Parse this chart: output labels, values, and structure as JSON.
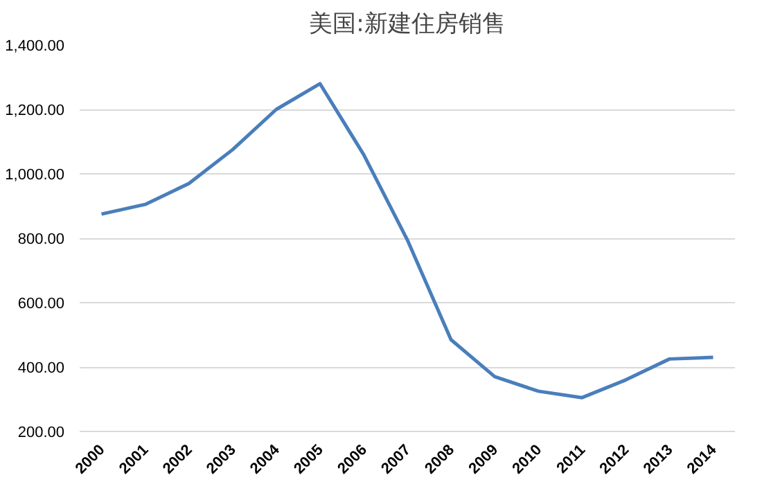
{
  "chart_data": {
    "type": "line",
    "title": "美国:新建住房销售",
    "categories": [
      "2000",
      "2001",
      "2002",
      "2003",
      "2004",
      "2005",
      "2006",
      "2007",
      "2008",
      "2009",
      "2010",
      "2011",
      "2012",
      "2013",
      "2014"
    ],
    "series": [
      {
        "color": "#4a7ebb",
        "values": [
          875,
          905,
          970,
          1075,
          1200,
          1280,
          1060,
          795,
          485,
          370,
          325,
          305,
          360,
          425,
          430
        ]
      }
    ],
    "ylim": [
      200,
      1400
    ],
    "yticks": [
      {
        "value": 200,
        "label": "200.00"
      },
      {
        "value": 400,
        "label": "400.00"
      },
      {
        "value": 600,
        "label": "600.00"
      },
      {
        "value": 800,
        "label": "800.00"
      },
      {
        "value": 1000,
        "label": "1,000.00"
      },
      {
        "value": 1200,
        "label": "1,200.00"
      },
      {
        "value": 1400,
        "label": "1,400.00"
      }
    ],
    "grid": "y",
    "marker": "none",
    "line_style": "solid"
  }
}
